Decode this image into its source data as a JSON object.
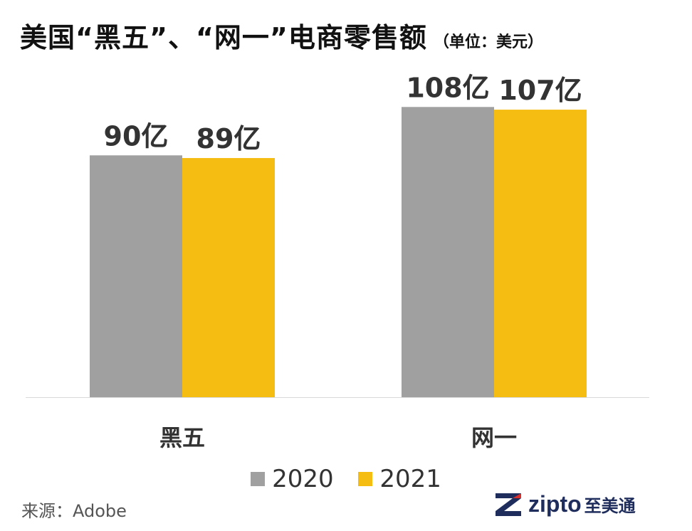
{
  "header": {
    "title": "美国“黑五”、“网一”电商零售额",
    "subtitle": "（单位：美元）"
  },
  "source": "来源：Adobe",
  "logo": {
    "word": "zipto",
    "cn": "至美通"
  },
  "colors": {
    "2020": "#a0a0a0",
    "2021": "#f5bd12"
  },
  "chart_data": {
    "type": "bar",
    "categories": [
      "黑五",
      "网一"
    ],
    "series": [
      {
        "name": "2020",
        "values": [
          90,
          108
        ],
        "labels": [
          "90亿",
          "108亿"
        ]
      },
      {
        "name": "2021",
        "values": [
          89,
          107
        ],
        "labels": [
          "89亿",
          "107亿"
        ]
      }
    ],
    "unit": "亿",
    "ylim": [
      0,
      120
    ],
    "grid": false,
    "legend": "bottom"
  }
}
